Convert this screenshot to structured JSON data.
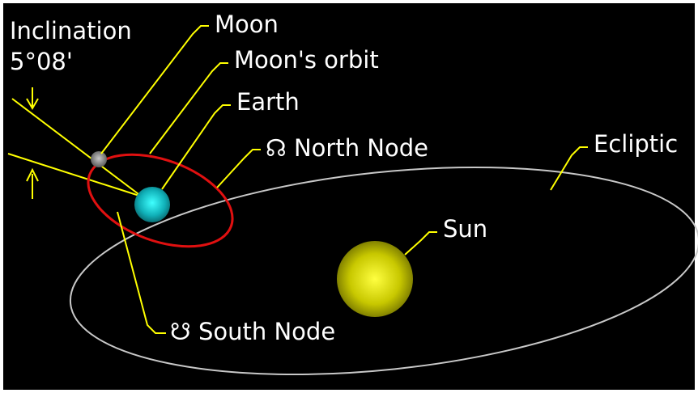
{
  "inclination": {
    "title": "Inclination",
    "value": "5°08'"
  },
  "labels": {
    "moon": "Moon",
    "moon_orbit": "Moon's orbit",
    "earth": "Earth",
    "north_node": "☊ North Node",
    "ecliptic": "Ecliptic",
    "sun": "Sun",
    "south_node": "☋ South Node"
  }
}
